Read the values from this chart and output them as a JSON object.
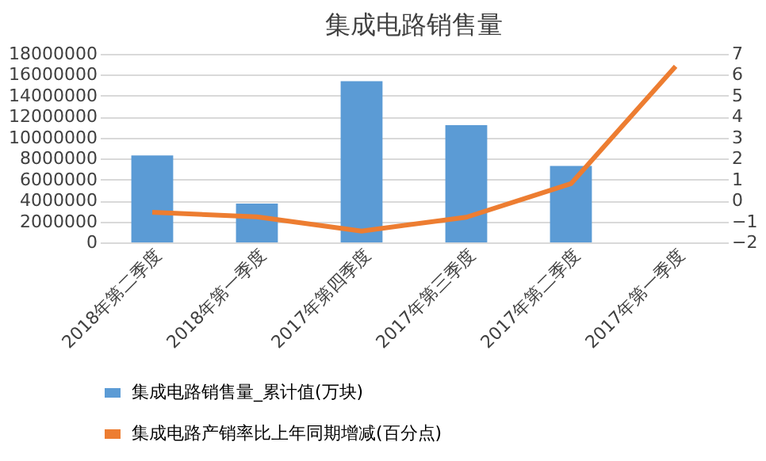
{
  "chart_data": {
    "type": "bar",
    "title": "集成电路销售量",
    "categories": [
      "2018年第二季度",
      "2018年第一季度",
      "2017年第四季度",
      "2017年第三季度",
      "2017年第二季度",
      "2017年第一季度"
    ],
    "series": [
      {
        "name": "集成电路销售量_累计值(万块)",
        "color": "#5b9bd5",
        "values": [
          8300000,
          3700000,
          15400000,
          11200000,
          7300000,
          null
        ]
      },
      {
        "name": "集成电路产销率比上年同期增减(百分点)",
        "type": "line",
        "axis": "y2",
        "color": "#ed7d31",
        "values": [
          -0.56,
          -0.78,
          -1.46,
          -0.8,
          0.8,
          6.4
        ]
      }
    ],
    "ylim": [
      0,
      18000000
    ],
    "yticks": [
      0,
      2000000,
      4000000,
      6000000,
      8000000,
      10000000,
      12000000,
      14000000,
      16000000,
      18000000
    ],
    "y2lim": [
      -2,
      7
    ],
    "y2ticks": [
      -2,
      -1,
      0,
      1,
      2,
      3,
      4,
      5,
      6,
      7
    ],
    "grid": "y",
    "legend": "bottom",
    "marker": "none",
    "line_style": "solid"
  }
}
